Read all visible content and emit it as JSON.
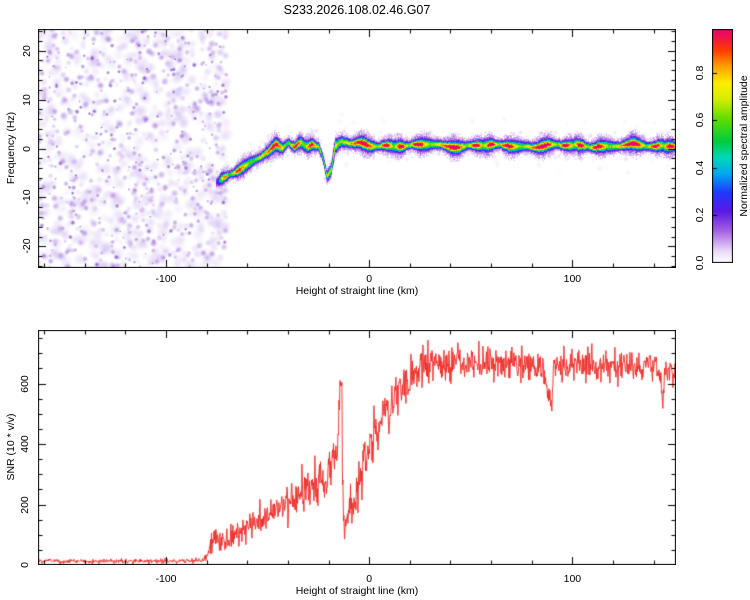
{
  "figure": {
    "title": "S233.2026.108.02.46.G07",
    "background": "#ffffff"
  },
  "chart_data": [
    {
      "type": "heatmap",
      "title": "S233.2026.108.02.46.G07",
      "xlabel": "Height of straight line (km)",
      "ylabel": "Frequency (Hz)",
      "xlim": [
        -163,
        151
      ],
      "ylim": [
        -24.4,
        24.4
      ],
      "x_ticks": [
        {
          "v": -100,
          "t": "-100"
        },
        {
          "v": 0,
          "t": "0"
        },
        {
          "v": 100,
          "t": "100"
        }
      ],
      "x_minor_step": 20,
      "y_ticks": [
        {
          "v": -20,
          "t": "-20"
        },
        {
          "v": -10,
          "t": "-10"
        },
        {
          "v": 0,
          "t": "0"
        },
        {
          "v": 10,
          "t": "10"
        },
        {
          "v": 20,
          "t": "20"
        }
      ],
      "y_minor_step": 2,
      "grid": false,
      "noise_region": {
        "x_start_km": -163,
        "x_end_km": -70,
        "description": "low-amplitude purple speckle noise covering all frequencies"
      },
      "ridge": {
        "description": "high-amplitude signal ridge near 0 Hz emerging from noise",
        "x_km": [
          -75,
          -68,
          -62,
          -56,
          -50,
          -46,
          -43,
          -40,
          -37,
          -34,
          -31,
          -28,
          -25,
          -23,
          -21,
          -19,
          -17,
          -14,
          -11,
          -8,
          -5,
          0,
          10,
          20,
          30,
          40,
          50,
          60,
          70,
          80,
          90,
          100,
          110,
          120,
          130,
          140,
          151
        ],
        "freq_hz": [
          -7,
          -5,
          -3.5,
          -2,
          -0.5,
          0.7,
          -0.2,
          1.2,
          0.3,
          1.3,
          0.4,
          1.2,
          0.8,
          -1.5,
          -5.5,
          -4.5,
          0.5,
          1.5,
          1.2,
          0.8,
          1.0,
          0.7,
          0.8,
          0.6,
          0.8,
          0.6,
          0.7,
          0.6,
          0.7,
          0.6,
          0.7,
          0.6,
          0.7,
          0.6,
          0.7,
          0.6,
          0.9
        ],
        "weak_dip_km_range": [
          -24,
          -18
        ],
        "peak_amplitude": 0.95
      },
      "colorbar": {
        "label": "Normalized spectral amplitude",
        "ticks": [
          {
            "v": 0.0,
            "t": "0.0"
          },
          {
            "v": 0.2,
            "t": "0.2"
          },
          {
            "v": 0.4,
            "t": "0.4"
          },
          {
            "v": 0.6,
            "t": "0.6"
          },
          {
            "v": 0.8,
            "t": "0.8"
          }
        ],
        "range": [
          0,
          0.985
        ],
        "colormap_stops": [
          [
            0.0,
            "#ffffff"
          ],
          [
            0.05,
            "#ead9f7"
          ],
          [
            0.14,
            "#a05ce0"
          ],
          [
            0.22,
            "#5a18e8"
          ],
          [
            0.3,
            "#2038ff"
          ],
          [
            0.38,
            "#00a8f0"
          ],
          [
            0.45,
            "#00d8b8"
          ],
          [
            0.52,
            "#00cc3c"
          ],
          [
            0.62,
            "#66dd00"
          ],
          [
            0.7,
            "#d4ee00"
          ],
          [
            0.77,
            "#ffee00"
          ],
          [
            0.84,
            "#ffa200"
          ],
          [
            0.91,
            "#ff3c00"
          ],
          [
            0.97,
            "#f01050"
          ],
          [
            1.0,
            "#e8086c"
          ]
        ]
      }
    },
    {
      "type": "line",
      "xlabel": "Height of straight line (km)",
      "ylabel": "SNR (10 * v/v)",
      "xlim": [
        -163,
        151
      ],
      "ylim": [
        0,
        777
      ],
      "x_ticks": [
        {
          "v": -100,
          "t": "-100"
        },
        {
          "v": 0,
          "t": "0"
        },
        {
          "v": 100,
          "t": "100"
        }
      ],
      "x_minor_step": 20,
      "y_ticks": [
        {
          "v": 0,
          "t": "0"
        },
        {
          "v": 200,
          "t": "200"
        },
        {
          "v": 400,
          "t": "400"
        },
        {
          "v": 600,
          "t": "600"
        }
      ],
      "y_minor_step": 50,
      "grid": false,
      "line_color": "#ee2822",
      "profile": {
        "x_km": [
          -163,
          -82,
          -79,
          -76,
          -72,
          -66,
          -60,
          -54,
          -48,
          -42,
          -36,
          -30,
          -25,
          -21,
          -18,
          -16,
          -14.8,
          -14.0,
          -13.4,
          -12.6,
          -11.5,
          -10,
          -8,
          -6,
          -4,
          -2,
          0,
          3,
          6,
          9,
          12,
          15,
          18,
          22,
          26,
          32,
          40,
          55,
          70,
          85,
          89.5,
          90.5,
          93,
          105,
          120,
          135,
          143,
          144,
          145,
          148,
          151
        ],
        "mean": [
          13,
          13,
          50,
          95,
          75,
          105,
          125,
          150,
          175,
          200,
          235,
          265,
          290,
          295,
          320,
          380,
          520,
          680,
          250,
          75,
          150,
          195,
          225,
          260,
          300,
          345,
          390,
          430,
          470,
          510,
          545,
          580,
          610,
          640,
          660,
          668,
          670,
          672,
          668,
          662,
          520,
          660,
          665,
          662,
          660,
          655,
          648,
          520,
          640,
          640,
          610
        ],
        "jitter": [
          9,
          9,
          40,
          55,
          48,
          55,
          60,
          62,
          66,
          72,
          80,
          88,
          95,
          100,
          108,
          115,
          90,
          25,
          70,
          25,
          65,
          75,
          82,
          88,
          92,
          96,
          100,
          100,
          100,
          98,
          95,
          92,
          88,
          84,
          80,
          76,
          72,
          66,
          62,
          60,
          28,
          60,
          60,
          60,
          60,
          58,
          55,
          25,
          55,
          55,
          60
        ]
      },
      "features": {
        "noise_floor_until_km": -79,
        "narrow_spike": {
          "km": -14,
          "peak": 680,
          "crash_to": 75
        },
        "narrow_dips": [
          {
            "km": 90,
            "value": 490
          },
          {
            "km": 144,
            "value": 500
          }
        ],
        "plateau": {
          "from_km": 25,
          "mean": 665
        }
      }
    }
  ]
}
